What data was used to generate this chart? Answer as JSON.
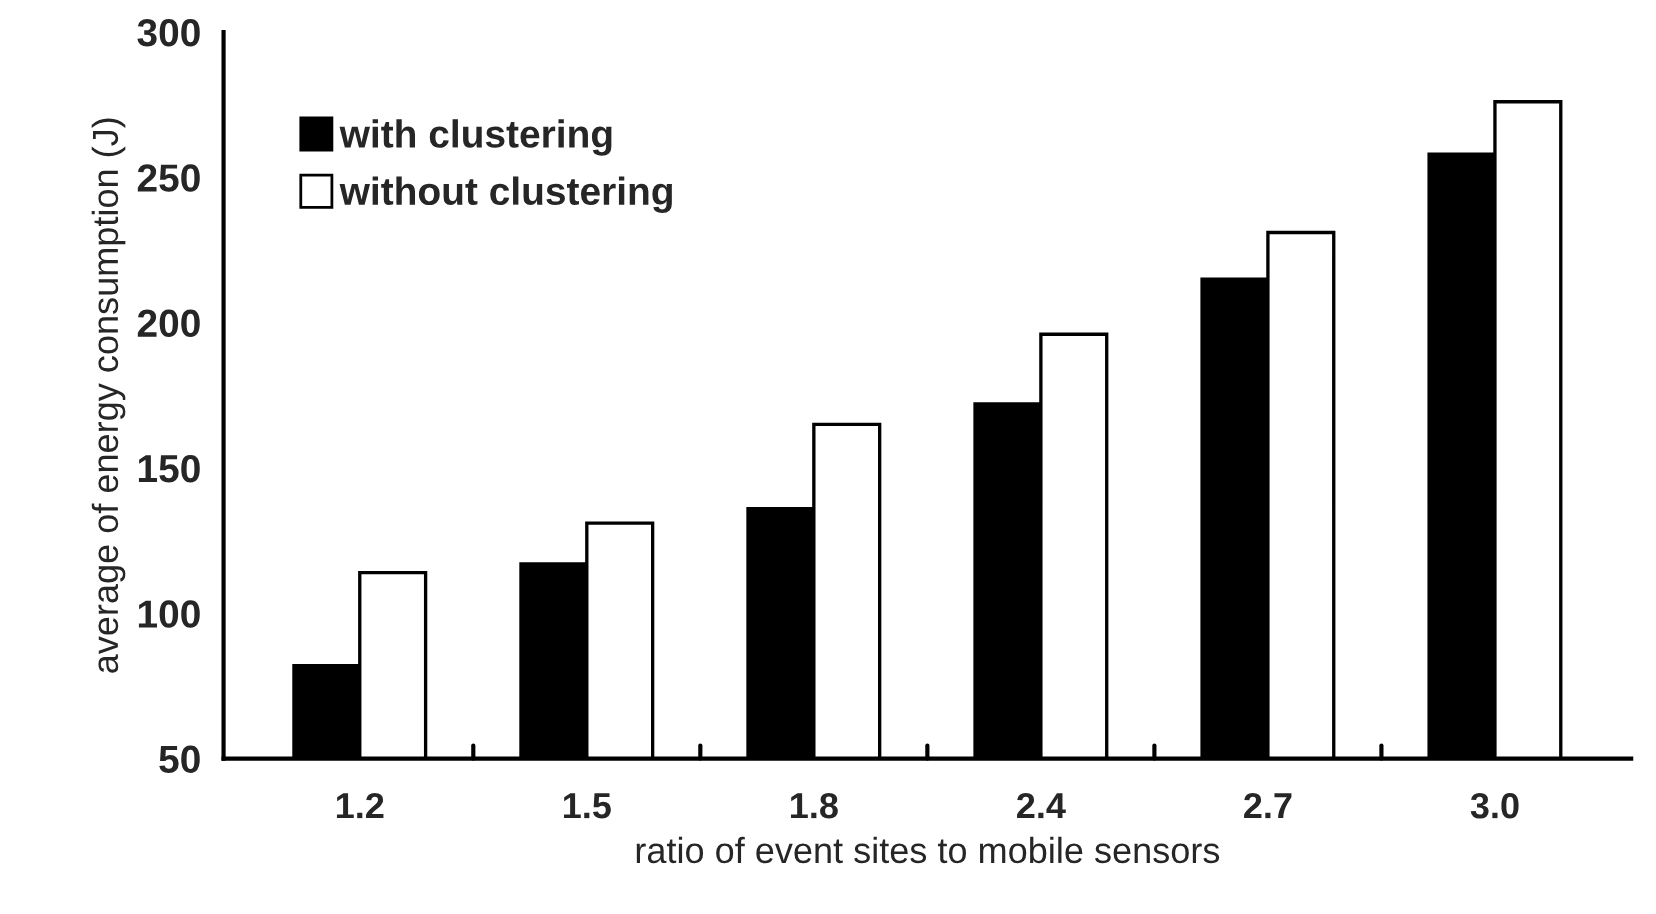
{
  "chart_data": {
    "type": "bar",
    "xlabel": "ratio of event sites to mobile sensors",
    "ylabel": "average of energy consumption (J)",
    "categories": [
      "1.2",
      "1.5",
      "1.8",
      "2.4",
      "2.7",
      "3.0"
    ],
    "series": [
      {
        "name": "with clustering",
        "color": "#000000",
        "values": [
          82,
          117,
          136,
          172,
          215,
          258
        ]
      },
      {
        "name": "without clustering",
        "color": "#ffffff",
        "values": [
          114,
          131,
          165,
          196,
          231,
          276
        ]
      }
    ],
    "ylim": [
      50,
      300
    ],
    "yticks": [
      50,
      100,
      150,
      200,
      250,
      300
    ],
    "grid": false,
    "legend": "top left"
  }
}
